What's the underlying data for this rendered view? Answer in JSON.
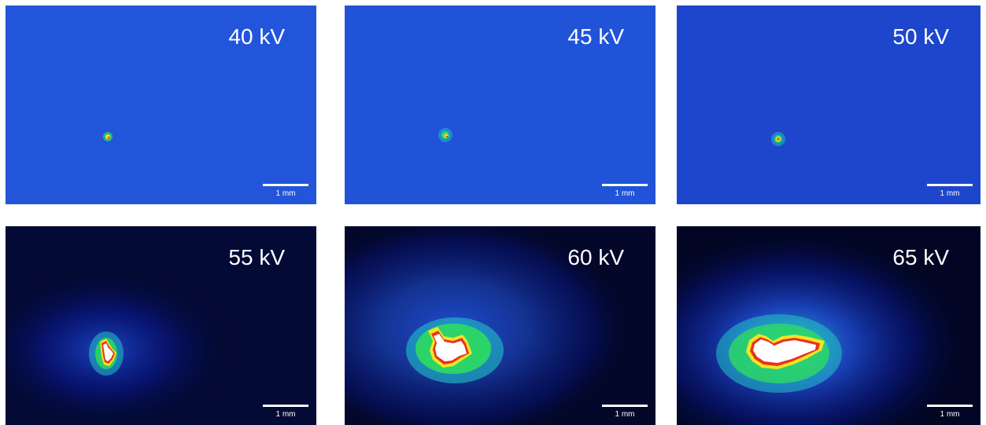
{
  "panels": [
    {
      "label": "40 kV",
      "scale_label": "1 mm",
      "background": "#1f4fd6",
      "halo_level": 0.0,
      "core_level": 0.05
    },
    {
      "label": "45 kV",
      "scale_label": "1 mm",
      "background": "#1e4dd4",
      "halo_level": 0.0,
      "core_level": 0.08
    },
    {
      "label": "50 kV",
      "scale_label": "1 mm",
      "background": "#1a3fc8",
      "halo_level": 0.0,
      "core_level": 0.08
    },
    {
      "label": "55 kV",
      "scale_label": "1 mm",
      "background": "#000000",
      "halo_level": 0.45,
      "core_level": 0.35
    },
    {
      "label": "60 kV",
      "scale_label": "1 mm",
      "background": "#000000",
      "halo_level": 0.75,
      "core_level": 0.7
    },
    {
      "label": "65 kV",
      "scale_label": "1 mm",
      "background": "#000000",
      "halo_level": 1.0,
      "core_level": 1.0
    }
  ],
  "colormap": [
    "#000000",
    "#0a1a9a",
    "#1f4fd6",
    "#22c2c8",
    "#2ee05a",
    "#f3e323",
    "#e8321e",
    "#ffffff"
  ]
}
